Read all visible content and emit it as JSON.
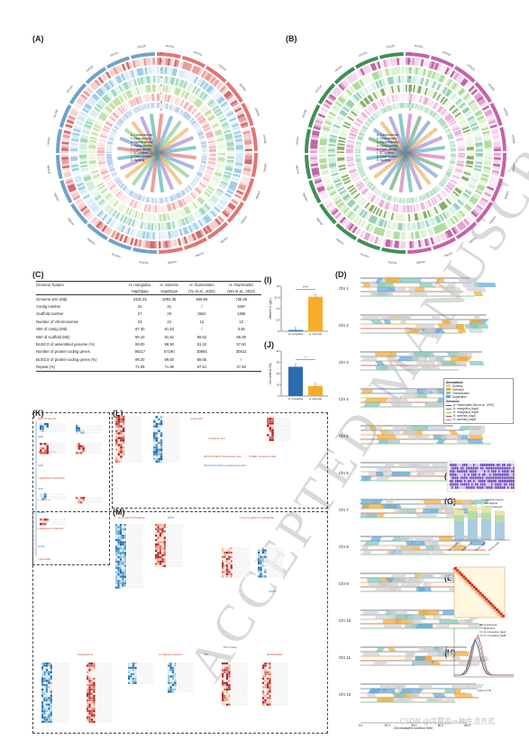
{
  "panels": {
    "A": "(A)",
    "B": "(B)",
    "C": "(C)",
    "D": "(D)",
    "E": "(E)",
    "F": "(F)",
    "G": "(G)",
    "H": "(H)",
    "I": "(I)",
    "J": "(J)",
    "K": "(K)",
    "L": "(L)",
    "M": "(M)"
  },
  "circos_legend": [
    "a. Chromosomes",
    "b. Gene density",
    "c. Repeat density",
    "d. Gypsy density",
    "e. Copia density",
    "f. GC content",
    "g. Gaps location",
    "h. Synteny"
  ],
  "table": {
    "headers": [
      "Genomic feature",
      "H. mongolica",
      "H. sinensis",
      "H. rhamnoides",
      "H. rhamnoides"
    ],
    "subheaders": [
      "",
      "Haplotype",
      "Haplotype",
      "(Yu et al., 2022)",
      "(Wu et al., 2022)"
    ],
    "rows": [
      [
        "Genome size (Mb)",
        "2331.25",
        "2092.36",
        "849.84",
        "730.46"
      ],
      [
        "Contig number",
        "31",
        "31",
        "/",
        "1687"
      ],
      [
        "Scaffold number",
        "27",
        "29",
        "3642",
        "1386"
      ],
      [
        "Number of chromosomes",
        "24",
        "24",
        "12",
        "12"
      ],
      [
        "N50 of contig (Mb)",
        "97.30",
        "81.52",
        "/",
        "3.46"
      ],
      [
        "N50 of scaffold (Mb)",
        "99.10",
        "81.52",
        "69.52",
        "65.09"
      ],
      [
        "BUSCO of assembled genome (%)",
        "99.00",
        "98.90",
        "91.32",
        "97.60"
      ],
      [
        "Number of protein-coding genes",
        "90217",
        "57190",
        "30864",
        "30812"
      ],
      [
        "BUSCO of protein-coding genes (%)",
        "99.20",
        "99.50",
        "89.65",
        "/"
      ],
      [
        "Repeat (%)",
        "71.09",
        "71.96",
        "67.61",
        "47.48"
      ]
    ]
  },
  "chart_I": {
    "ylabel": "Vitamin C (g/L)",
    "categories": [
      "H. mongolica",
      "H. sinensis"
    ],
    "values": [
      0.4,
      11.5
    ],
    "ylim": [
      0,
      15
    ],
    "sig": "****",
    "colors": [
      "#2b6cb0",
      "#f6ad2b"
    ]
  },
  "chart_J": {
    "ylabel": "Oil content (%)",
    "categories": [
      "H. mongolica",
      "H. sinensis"
    ],
    "values": [
      26,
      9
    ],
    "ylim": [
      0,
      40
    ],
    "sig": "*",
    "colors": [
      "#2b6cb0",
      "#f6ad2b"
    ]
  },
  "chr_labels": [
    "Chr 1",
    "Chr 2",
    "Chr 3",
    "Chr 4",
    "Chr 5",
    "Chr 6",
    "Chr 7",
    "Chr 8",
    "Chr 9",
    "Chr 10",
    "Chr 11",
    "Chr 12"
  ],
  "d_xlabel": "Chromosome position (Mb)",
  "d_xticks": [
    "0.0",
    "20.0",
    "40.0",
    "60.0",
    "80.0"
  ],
  "d_legend_title": "Annotations",
  "d_legend": [
    "Synteny",
    "Inversion",
    "Translocation",
    "Duplication"
  ],
  "d_legend_colors": [
    "#cfcfcf",
    "#f0a830",
    "#7dc4b5",
    "#58a6d8"
  ],
  "d_genomes_title": "Genomes",
  "d_genomes": [
    "H. rhamnoides (Wu et al., 2022)",
    "H. mongolica_hapA",
    "H. mongolica_hapB",
    "H. sinensis_hapA",
    "H. sinensis_hapB"
  ],
  "d_genome_colors": [
    "#555555",
    "#4a7fc1",
    "#e0a040",
    "#c84a4a",
    "#6fb06f"
  ],
  "g_legend": [
    "Syntenic regions",
    "Not aligned",
    "Highly diverged"
  ],
  "g_legend_colors": [
    "#aaccdd",
    "#b9dba6",
    "#e6e6a8"
  ],
  "g_xlabels": [
    "H. mongolica_hapA",
    "H. mongolica_hapB",
    "H. sinensis_hapA",
    "H. sinensis_hapB"
  ],
  "h_legend": [
    "H.observed",
    "H.random",
    "H. mongolica_hapA",
    "H. mongolica_hapB"
  ],
  "h_xlabel": "Years of TE",
  "h_ylabel": "Frequency",
  "k_pathway": [
    "GDP-D-mannose",
    "GMP",
    "GDP-L-galactose",
    "GGP",
    "L-galactose-1-phosphate",
    "GPP",
    "L-galactose",
    "GalDH",
    "L-galactono-1,4-lactone",
    "GLDH",
    "L-ascorbate"
  ],
  "l_pathway": [
    "α-linolenic acid",
    "α-linolenic acid",
    "γ-linolenic acid",
    "(9S,10Z,12E)-9-hydroperoxy acid",
    "(9S,10Z)-9-hydroxyoctadecenoic acid",
    "9-(10E)-12-hydroxy acid",
    "a-fatty acid"
  ],
  "m_pathway": [
    "sn-glycerol 3-phosphate",
    "GPAT",
    "1-acyl-sn-glycerol 3-phosphate",
    "LPAAT",
    "phosphatidate",
    "PAP",
    "1,2-diacyl-sn-glycerol",
    "DGAT",
    "triacylglycerol",
    "DAG kinase",
    "a phosphatidate"
  ],
  "watermark": "ACCEPTED MANUSCRIPT",
  "footer": "CSDN @内蒙古一种生活方式"
}
